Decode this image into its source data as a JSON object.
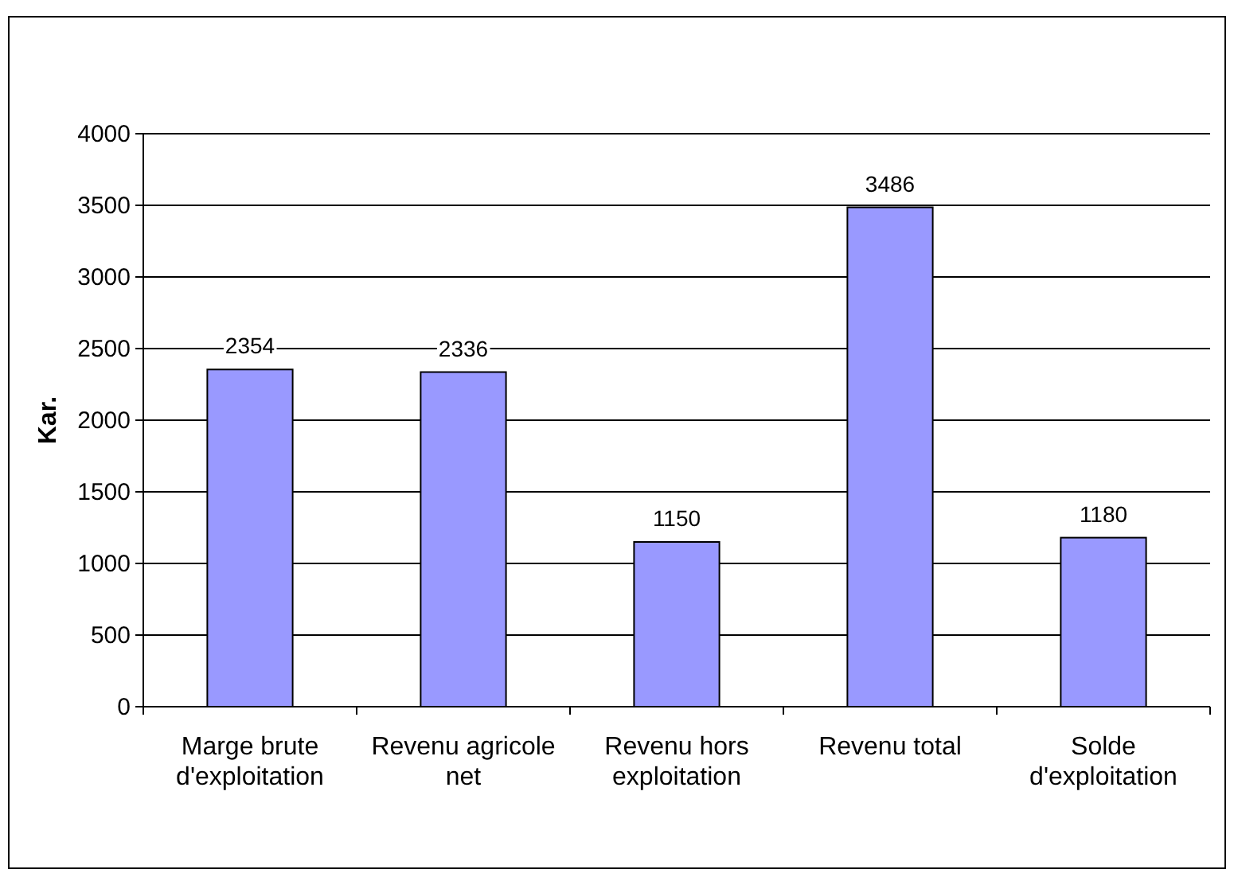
{
  "chart_data": {
    "type": "bar",
    "ylabel": "Kar.",
    "categories": [
      "Marge brute d'exploitation",
      "Revenu agricole net",
      "Revenu hors exploitation",
      "Revenu total",
      "Solde d'exploitation"
    ],
    "values": [
      2354,
      2336,
      1150,
      3486,
      1180
    ],
    "color": "#9999ff",
    "ylim": [
      0,
      4000
    ],
    "yticks": [
      0,
      500,
      1000,
      1500,
      2000,
      2500,
      3000,
      3500,
      4000
    ],
    "grid": "y",
    "data_labels": true
  }
}
